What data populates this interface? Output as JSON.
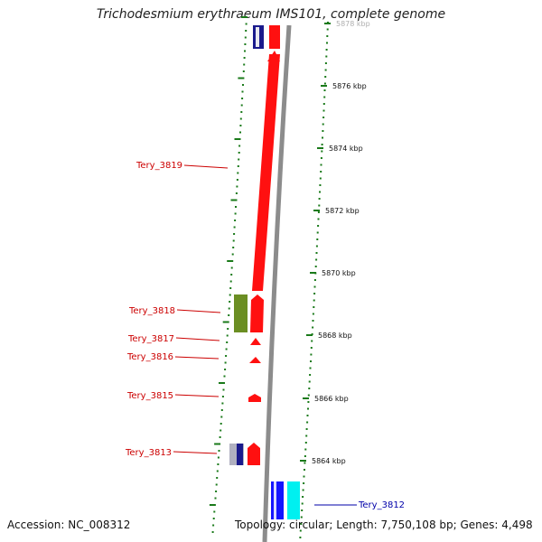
{
  "title": "Trichodesmium erythraeum IMS101, complete genome",
  "accession": "Accession: NC_008312",
  "topology": "Topology: circular; Length: 7,750,108 bp; Genes: 4,498",
  "colors": {
    "forward_gene": "#ff0000",
    "backbone": "#888888",
    "scale_tick": "#1a7a1a",
    "label_red": "#cc0000",
    "label_blue": "#0000aa",
    "olive_feature": "#6b8e23",
    "blue_feature": "#0000ff",
    "cyan_feature": "#00ffff",
    "navy_feature": "#000080"
  },
  "scale_ticks": [
    {
      "label": "5878 kbp",
      "faded": true
    },
    {
      "label": "5876 kbp"
    },
    {
      "label": "5874 kbp"
    },
    {
      "label": "5872 kbp"
    },
    {
      "label": "5870 kbp"
    },
    {
      "label": "5868 kbp"
    },
    {
      "label": "5866 kbp"
    },
    {
      "label": "5864 kbp"
    }
  ],
  "gene_labels": {
    "tery_3819": "Tery_3819",
    "tery_3818": "Tery_3818",
    "tery_3817": "Tery_3817",
    "tery_3816": "Tery_3816",
    "tery_3815": "Tery_3815",
    "tery_3813": "Tery_3813",
    "tery_3812": "Tery_3812"
  }
}
